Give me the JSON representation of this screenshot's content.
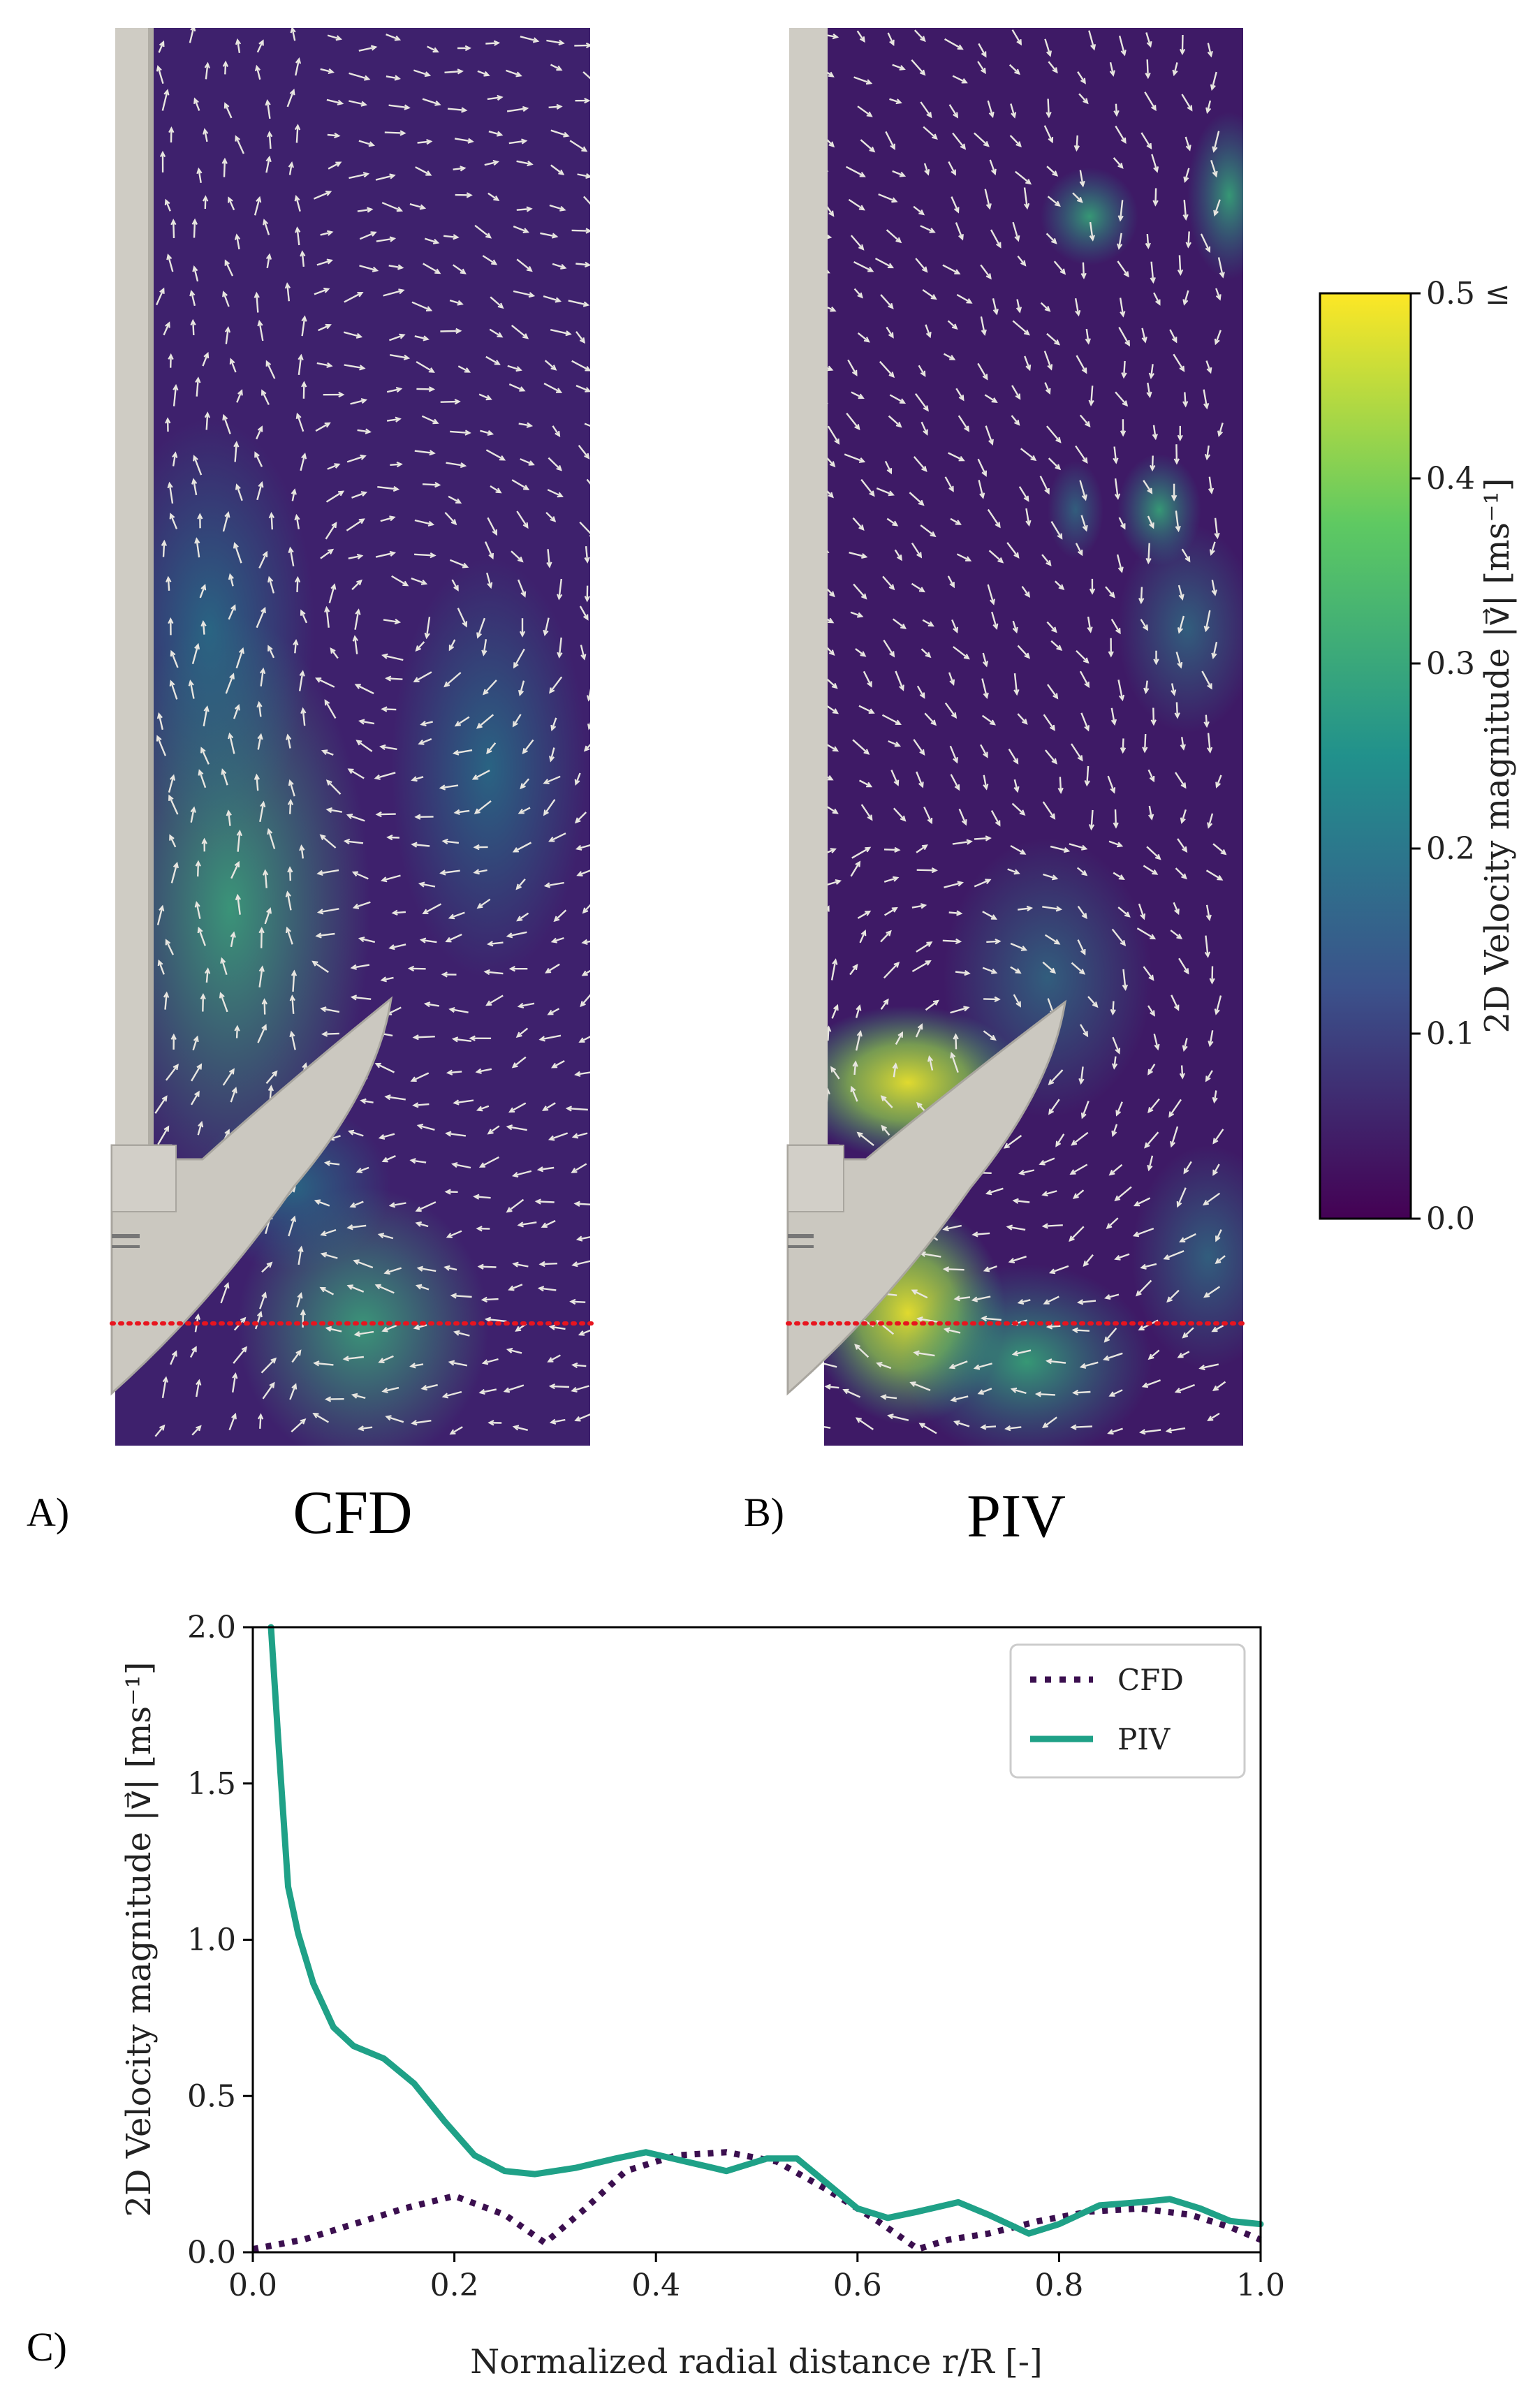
{
  "panels": {
    "a": {
      "label": "A)",
      "title": "CFD"
    },
    "b": {
      "label": "B)",
      "title": "PIV"
    },
    "c": {
      "label": "C)"
    }
  },
  "colorbar": {
    "label": "2D Velocity magnitude |v⃗| [ms⁻¹]",
    "ticks": [
      "0.0",
      "0.1",
      "0.2",
      "0.3",
      "0.4",
      "0.5 ≤"
    ],
    "tick_values": [
      0.0,
      0.1,
      0.2,
      0.3,
      0.4,
      0.5
    ],
    "colormap": [
      "#440154",
      "#3b528b",
      "#21918c",
      "#5ec962",
      "#fde725"
    ]
  },
  "colors": {
    "cfd_line": "#3b0f4f",
    "piv_line": "#1fa187",
    "cut_line": "#e8141e",
    "impeller": "#cbc8c0",
    "shaft": "#cfccc4",
    "field_dark": "#3e1a66"
  },
  "chart_data": {
    "type": "line",
    "xlabel": "Normalized radial distance r/R [-]",
    "ylabel": "2D Velocity magnitude |v⃗| [ms⁻¹]",
    "xlim": [
      0.0,
      1.0
    ],
    "ylim": [
      0.0,
      2.0
    ],
    "xticks": [
      "0.0",
      "0.2",
      "0.4",
      "0.6",
      "0.8",
      "1.0"
    ],
    "xtick_values": [
      0.0,
      0.2,
      0.4,
      0.6,
      0.8,
      1.0
    ],
    "yticks": [
      "0.0",
      "0.5",
      "1.0",
      "1.5",
      "2.0"
    ],
    "ytick_values": [
      0.0,
      0.5,
      1.0,
      1.5,
      2.0
    ],
    "legend_position": "top-right",
    "series": [
      {
        "name": "CFD",
        "style": "dotted",
        "x": [
          0.0,
          0.05,
          0.1,
          0.15,
          0.2,
          0.25,
          0.29,
          0.33,
          0.37,
          0.42,
          0.47,
          0.52,
          0.57,
          0.62,
          0.66,
          0.69,
          0.73,
          0.78,
          0.83,
          0.88,
          0.93,
          0.97,
          1.0
        ],
        "values": [
          0.01,
          0.04,
          0.09,
          0.14,
          0.18,
          0.12,
          0.03,
          0.14,
          0.26,
          0.31,
          0.32,
          0.29,
          0.2,
          0.1,
          0.01,
          0.04,
          0.06,
          0.1,
          0.13,
          0.14,
          0.12,
          0.08,
          0.04
        ]
      },
      {
        "name": "PIV",
        "style": "solid",
        "x": [
          0.018,
          0.025,
          0.035,
          0.045,
          0.06,
          0.08,
          0.1,
          0.13,
          0.16,
          0.19,
          0.22,
          0.25,
          0.28,
          0.32,
          0.36,
          0.39,
          0.43,
          0.47,
          0.51,
          0.54,
          0.57,
          0.6,
          0.63,
          0.66,
          0.7,
          0.73,
          0.77,
          0.8,
          0.84,
          0.88,
          0.91,
          0.94,
          0.97,
          1.0
        ],
        "values": [
          2.0,
          1.65,
          1.17,
          1.02,
          0.86,
          0.72,
          0.66,
          0.62,
          0.54,
          0.42,
          0.31,
          0.26,
          0.25,
          0.27,
          0.3,
          0.32,
          0.29,
          0.26,
          0.3,
          0.3,
          0.22,
          0.14,
          0.11,
          0.13,
          0.16,
          0.12,
          0.06,
          0.09,
          0.15,
          0.16,
          0.17,
          0.14,
          0.1,
          0.09
        ]
      }
    ]
  }
}
